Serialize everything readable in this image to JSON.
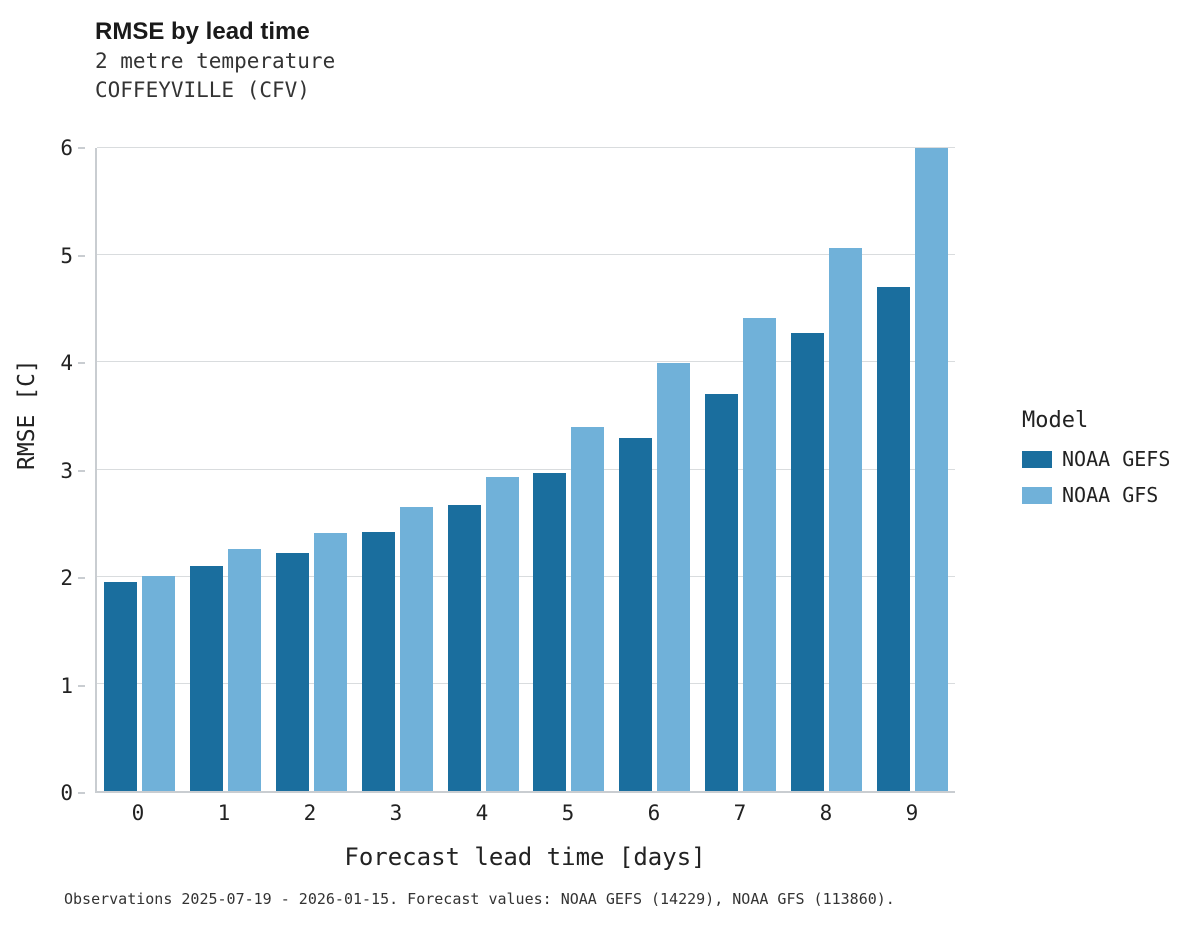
{
  "title": "RMSE by lead time",
  "subtitle_line1": "2 metre temperature",
  "subtitle_line2": "COFFEYVILLE (CFV)",
  "footer": "Observations 2025-07-19 - 2026-01-15. Forecast values: NOAA GEFS (14229), NOAA GFS (113860).",
  "legend": {
    "title": "Model",
    "entries": [
      {
        "label": "NOAA GEFS",
        "color": "#1a6e9e"
      },
      {
        "label": "NOAA GFS",
        "color": "#70b1d9"
      }
    ]
  },
  "colors": {
    "gefs": "#1a6e9e",
    "gfs": "#70b1d9",
    "grid": "#d9dcde",
    "axis": "#c9cdd1",
    "text": "#222222"
  },
  "chart_data": {
    "type": "bar",
    "title": "RMSE by lead time",
    "subtitle": [
      "2 metre temperature",
      "COFFEYVILLE (CFV)"
    ],
    "categories": [
      "0",
      "1",
      "2",
      "3",
      "4",
      "5",
      "6",
      "7",
      "8",
      "9"
    ],
    "series": [
      {
        "name": "NOAA GEFS",
        "color": "#1a6e9e",
        "values": [
          1.95,
          2.1,
          2.22,
          2.42,
          2.67,
          2.97,
          3.29,
          3.7,
          4.27,
          4.7
        ]
      },
      {
        "name": "NOAA GFS",
        "color": "#70b1d9",
        "values": [
          2.01,
          2.26,
          2.41,
          2.65,
          2.93,
          3.4,
          3.99,
          4.41,
          5.07,
          6.0
        ]
      }
    ],
    "xlabel": "Forecast lead time [days]",
    "ylabel": "RMSE [C]",
    "ylim": [
      0,
      6
    ],
    "yticks": [
      0,
      1,
      2,
      3,
      4,
      5,
      6
    ],
    "grid": true,
    "legend_title": "Model",
    "legend_position": "right"
  }
}
